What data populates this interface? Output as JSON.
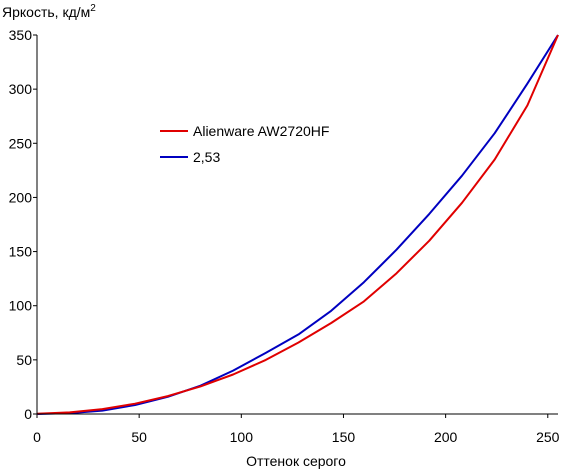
{
  "chart_data": {
    "type": "line",
    "title": "",
    "ylabel_main": "Яркость, кд/м",
    "ylabel_sup": "2",
    "xlabel": "Оттенок серого",
    "xlim": [
      0,
      255
    ],
    "ylim": [
      0,
      350
    ],
    "x_ticks": [
      "0",
      "50",
      "100",
      "150",
      "200",
      "250"
    ],
    "y_ticks": [
      "0",
      "50",
      "100",
      "150",
      "200",
      "250",
      "300",
      "350"
    ],
    "grid": false,
    "legend_position": "upper-left",
    "series": [
      {
        "name": "Alienware AW2720HF",
        "color": "#e00000",
        "x": [
          0,
          16,
          32,
          48,
          64,
          80,
          96,
          112,
          128,
          144,
          160,
          176,
          192,
          208,
          224,
          240,
          255
        ],
        "y": [
          0.2,
          1.5,
          4.5,
          9.5,
          16.5,
          25.5,
          36.5,
          50,
          66,
          84,
          104,
          130,
          160,
          195,
          235,
          285,
          350
        ]
      },
      {
        "name": "2,53",
        "color": "#0000c0",
        "x": [
          0,
          16,
          32,
          48,
          64,
          80,
          96,
          112,
          128,
          144,
          160,
          176,
          192,
          208,
          224,
          240,
          255
        ],
        "y": [
          0,
          0.8,
          3.1,
          8.3,
          15.9,
          26.1,
          40.1,
          56.4,
          73.5,
          95.3,
          121.7,
          151.8,
          184.8,
          220.1,
          259.3,
          305.1,
          350
        ]
      }
    ]
  }
}
